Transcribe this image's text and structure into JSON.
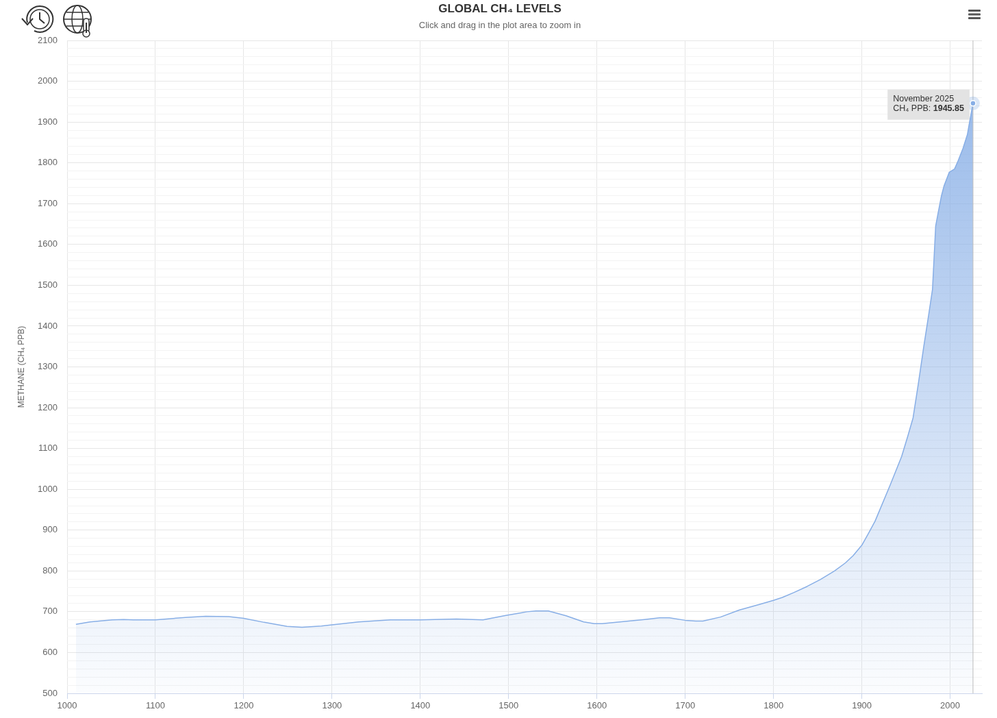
{
  "chart_data": {
    "type": "area",
    "title": "GLOBAL CH₄ LEVELS",
    "subtitle": "Click and drag in the plot area to zoom in",
    "ylabel": "METHANE (CH₄ PPB)",
    "x": [
      1010,
      1026,
      1051,
      1064,
      1075,
      1100,
      1134,
      1157,
      1183,
      1200,
      1223,
      1249,
      1266,
      1288,
      1300,
      1330,
      1366,
      1400,
      1441,
      1471,
      1497,
      1521,
      1531,
      1545,
      1565,
      1585,
      1597,
      1606,
      1626,
      1654,
      1671,
      1682,
      1700,
      1712,
      1720,
      1740,
      1761,
      1786,
      1800,
      1810,
      1823,
      1838,
      1853,
      1869,
      1881,
      1890,
      1900,
      1908,
      1915,
      1932,
      1945,
      1952,
      1958,
      1964,
      1970,
      1976,
      1980,
      1983.6,
      1986,
      1990,
      1993,
      1999,
      2005,
      2009,
      2014.5,
      2019.5,
      2022,
      2025.88
    ],
    "series": [
      {
        "color": "#87aee6",
        "values": [
          669,
          675,
          680,
          681,
          680,
          680,
          686,
          689,
          688,
          684,
          674,
          664,
          662,
          665,
          668,
          675,
          680,
          680,
          682,
          680,
          691,
          700,
          702,
          702,
          690,
          675,
          671,
          671,
          675,
          681,
          685,
          685,
          679,
          677,
          677,
          687,
          704,
          719,
          728,
          735,
          747,
          762,
          779,
          800,
          819,
          837,
          863,
          894,
          922,
          1010,
          1080,
          1130,
          1175,
          1259,
          1348,
          1432,
          1490,
          1645,
          1673,
          1718,
          1743,
          1777,
          1785,
          1805,
          1835,
          1869,
          1900,
          1945.85
        ]
      }
    ],
    "xlim": [
      1000,
      2036
    ],
    "xticks": [
      1000,
      1100,
      1200,
      1300,
      1400,
      1500,
      1600,
      1700,
      1800,
      1900,
      2000
    ],
    "ylim": [
      500,
      2100
    ],
    "yticks": [
      500,
      {
        "value": 520,
        "label": null
      },
      {
        "value": 540,
        "label": null
      },
      {
        "value": 560,
        "label": null
      },
      {
        "value": 580,
        "label": null
      },
      600,
      {
        "value": 620,
        "label": null
      },
      {
        "value": 640,
        "label": null
      },
      {
        "value": 660,
        "label": null
      },
      {
        "value": 680,
        "label": null
      },
      700,
      {
        "value": 720,
        "label": null
      },
      {
        "value": 740,
        "label": null
      },
      {
        "value": 760,
        "label": null
      },
      {
        "value": 780,
        "label": null
      },
      800,
      {
        "value": 820,
        "label": null
      },
      {
        "value": 840,
        "label": null
      },
      {
        "value": 860,
        "label": null
      },
      {
        "value": 880,
        "label": null
      },
      900,
      {
        "value": 920,
        "label": null
      },
      {
        "value": 940,
        "label": null
      },
      {
        "value": 960,
        "label": null
      },
      {
        "value": 980,
        "label": null
      },
      1000,
      {
        "value": 1020,
        "label": null
      },
      {
        "value": 1040,
        "label": null
      },
      {
        "value": 1060,
        "label": null
      },
      {
        "value": 1080,
        "label": null
      },
      1100,
      {
        "value": 1120,
        "label": null
      },
      {
        "value": 1140,
        "label": null
      },
      {
        "value": 1160,
        "label": null
      },
      {
        "value": 1180,
        "label": null
      },
      1200,
      {
        "value": 1220,
        "label": null
      },
      {
        "value": 1240,
        "label": null
      },
      {
        "value": 1260,
        "label": null
      },
      {
        "value": 1280,
        "label": null
      },
      1300,
      {
        "value": 1320,
        "label": null
      },
      {
        "value": 1340,
        "label": null
      },
      {
        "value": 1360,
        "label": null
      },
      {
        "value": 1380,
        "label": null
      },
      1400,
      {
        "value": 1420,
        "label": null
      },
      {
        "value": 1440,
        "label": null
      },
      {
        "value": 1460,
        "label": null
      },
      {
        "value": 1480,
        "label": null
      },
      1500,
      {
        "value": 1520,
        "label": null
      },
      {
        "value": 1540,
        "label": null
      },
      {
        "value": 1560,
        "label": null
      },
      {
        "value": 1580,
        "label": null
      },
      1600,
      {
        "value": 1620,
        "label": null
      },
      {
        "value": 1640,
        "label": null
      },
      {
        "value": 1660,
        "label": null
      },
      {
        "value": 1680,
        "label": null
      },
      1700,
      {
        "value": 1720,
        "label": null
      },
      {
        "value": 1740,
        "label": null
      },
      {
        "value": 1760,
        "label": null
      },
      {
        "value": 1780,
        "label": null
      },
      1800,
      {
        "value": 1820,
        "label": null
      },
      {
        "value": 1840,
        "label": null
      },
      {
        "value": 1860,
        "label": null
      },
      {
        "value": 1880,
        "label": null
      },
      1900,
      {
        "value": 1920,
        "label": null
      },
      {
        "value": 1940,
        "label": null
      },
      {
        "value": 1960,
        "label": null
      },
      {
        "value": 1980,
        "label": null
      },
      2000,
      {
        "value": 2020,
        "label": null
      },
      {
        "value": 2040,
        "label": null
      },
      {
        "value": 2060,
        "label": null
      },
      {
        "value": 2080,
        "label": null
      },
      2100
    ],
    "grid": true,
    "marker": "none",
    "ref_lines": [
      {
        "axis": "x",
        "value": 2025.88,
        "color": "#bbbbbb"
      }
    ],
    "annotations": [
      {
        "text": "November 2025\nCH₄ PPB: 1945.85",
        "x": 2025.88,
        "y": 1945.85
      }
    ]
  }
}
